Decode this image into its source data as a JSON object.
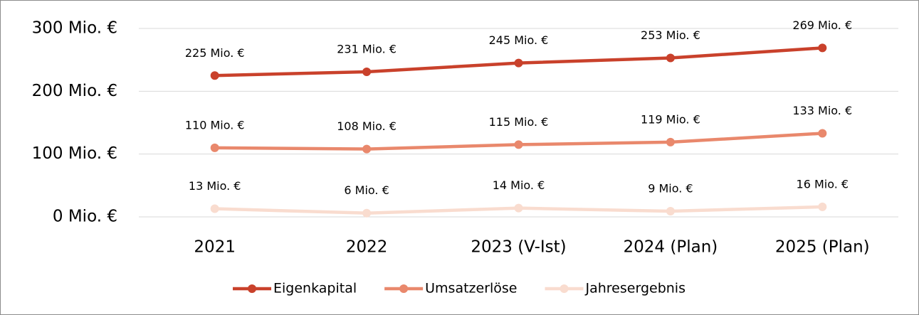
{
  "chart_data": {
    "type": "line",
    "categories": [
      "2021",
      "2022",
      "2023 (V-Ist)",
      "2024 (Plan)",
      "2025 (Plan)"
    ],
    "series": [
      {
        "name": "Eigenkapital",
        "color": "#c9412b",
        "values": [
          225,
          231,
          245,
          253,
          269
        ],
        "value_labels": [
          "225 Mio. €",
          "231 Mio. €",
          "245 Mio. €",
          "253 Mio. €",
          "269 Mio. €"
        ]
      },
      {
        "name": "Umsatzerlöse",
        "color": "#e9886c",
        "values": [
          110,
          108,
          115,
          119,
          133
        ],
        "value_labels": [
          "110 Mio. €",
          "108 Mio. €",
          "115 Mio. €",
          "119 Mio. €",
          "133 Mio. €"
        ]
      },
      {
        "name": "Jahresergebnis",
        "color": "#f9dccf",
        "values": [
          13,
          6,
          14,
          9,
          16
        ],
        "value_labels": [
          "13 Mio. €",
          "6 Mio. €",
          "14 Mio. €",
          "9 Mio. €",
          "16 Mio. €"
        ]
      }
    ],
    "ylim": [
      0,
      300
    ],
    "yticks": [
      {
        "value": 0,
        "label": "0 Mio. €"
      },
      {
        "value": 100,
        "label": "100 Mio. €"
      },
      {
        "value": 200,
        "label": "200 Mio. €"
      },
      {
        "value": 300,
        "label": "300 Mio. €"
      }
    ],
    "grid": true,
    "legend": "bottom"
  }
}
